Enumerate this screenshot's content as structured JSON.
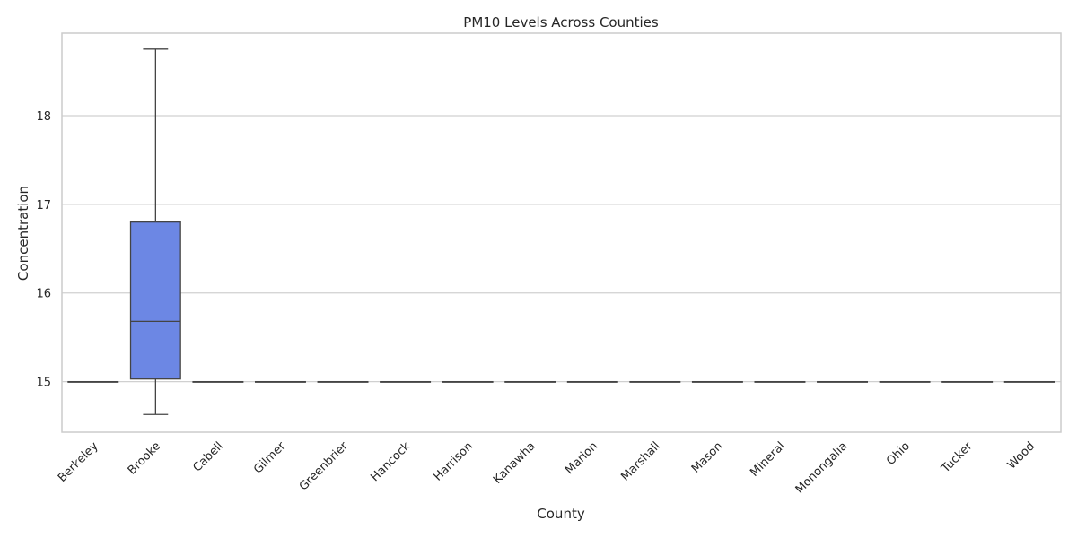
{
  "chart_data": {
    "type": "box",
    "title": "PM10 Levels Across Counties",
    "xlabel": "County",
    "ylabel": "Concentration",
    "ylim": [
      14.43,
      18.93
    ],
    "yticks": [
      15,
      16,
      17,
      18
    ],
    "grid": true,
    "box_color": "#6c87e4",
    "line_color": "#444444",
    "categories": [
      "Berkeley",
      "Brooke",
      "Cabell",
      "Gilmer",
      "Greenbrier",
      "Hancock",
      "Harrison",
      "Kanawha",
      "Marion",
      "Marshall",
      "Mason",
      "Mineral",
      "Monongalia",
      "Ohio",
      "Tucker",
      "Wood"
    ],
    "boxes": [
      {
        "min": 15.0,
        "q1": 15.0,
        "median": 15.0,
        "q3": 15.0,
        "max": 15.0
      },
      {
        "min": 14.63,
        "q1": 15.03,
        "median": 15.68,
        "q3": 16.8,
        "max": 18.75
      },
      {
        "min": 15.0,
        "q1": 15.0,
        "median": 15.0,
        "q3": 15.0,
        "max": 15.0
      },
      {
        "min": 15.0,
        "q1": 15.0,
        "median": 15.0,
        "q3": 15.0,
        "max": 15.0
      },
      {
        "min": 15.0,
        "q1": 15.0,
        "median": 15.0,
        "q3": 15.0,
        "max": 15.0
      },
      {
        "min": 15.0,
        "q1": 15.0,
        "median": 15.0,
        "q3": 15.0,
        "max": 15.0
      },
      {
        "min": 15.0,
        "q1": 15.0,
        "median": 15.0,
        "q3": 15.0,
        "max": 15.0
      },
      {
        "min": 15.0,
        "q1": 15.0,
        "median": 15.0,
        "q3": 15.0,
        "max": 15.0
      },
      {
        "min": 15.0,
        "q1": 15.0,
        "median": 15.0,
        "q3": 15.0,
        "max": 15.0
      },
      {
        "min": 15.0,
        "q1": 15.0,
        "median": 15.0,
        "q3": 15.0,
        "max": 15.0
      },
      {
        "min": 15.0,
        "q1": 15.0,
        "median": 15.0,
        "q3": 15.0,
        "max": 15.0
      },
      {
        "min": 15.0,
        "q1": 15.0,
        "median": 15.0,
        "q3": 15.0,
        "max": 15.0
      },
      {
        "min": 15.0,
        "q1": 15.0,
        "median": 15.0,
        "q3": 15.0,
        "max": 15.0
      },
      {
        "min": 15.0,
        "q1": 15.0,
        "median": 15.0,
        "q3": 15.0,
        "max": 15.0
      },
      {
        "min": 15.0,
        "q1": 15.0,
        "median": 15.0,
        "q3": 15.0,
        "max": 15.0
      },
      {
        "min": 15.0,
        "q1": 15.0,
        "median": 15.0,
        "q3": 15.0,
        "max": 15.0
      }
    ]
  }
}
